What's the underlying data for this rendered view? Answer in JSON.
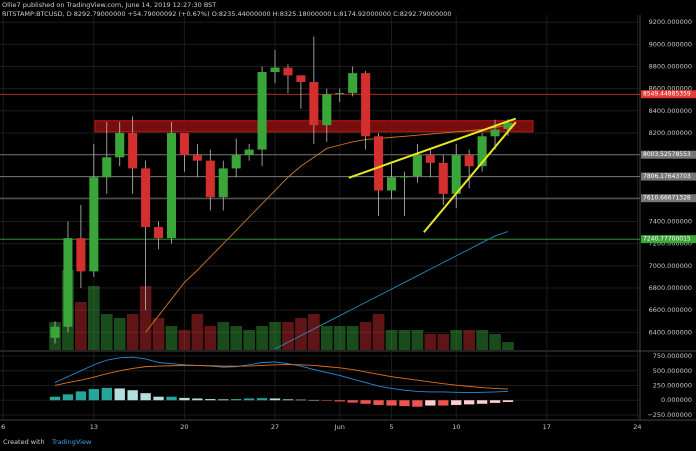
{
  "header": {
    "publisher": "Ollie7 published on TradingView.com, June 14, 2019 12:27:30 BST",
    "symbol_line": "BITSTAMP:BTCUSD, D 8292.79000000 +54.79000092 (+0.67%) O:8235.44000000 H:8325.18000000 L:8174.92000000 C:8292.79000000"
  },
  "footer": {
    "created": "Created with",
    "brand": "TradingView"
  },
  "chart_data": {
    "type": "candlestick",
    "xlim": [
      -0.25,
      49.2
    ],
    "xticks": [
      {
        "value": 0,
        "label": "6"
      },
      {
        "value": 7,
        "label": "13"
      },
      {
        "value": 14,
        "label": "20"
      },
      {
        "value": 21,
        "label": "27"
      },
      {
        "value": 26,
        "label": "Jun"
      },
      {
        "value": 30,
        "label": "5"
      },
      {
        "value": 35,
        "label": "10"
      },
      {
        "value": 42,
        "label": "17"
      },
      {
        "value": 49,
        "label": "24"
      }
    ],
    "ylim": [
      6240,
      9265
    ],
    "yticks": [
      {
        "value": 6400,
        "label": "6400.000000"
      },
      {
        "value": 6600,
        "label": "6600.000000"
      },
      {
        "value": 6800,
        "label": "6800.000000"
      },
      {
        "value": 7000,
        "label": "7000.000000"
      },
      {
        "value": 7200,
        "label": "7200.000000"
      },
      {
        "value": 7400,
        "label": "7400.000000"
      },
      {
        "value": 7600,
        "label": "7600.000000"
      },
      {
        "value": 7800,
        "label": "7800.000000"
      },
      {
        "value": 8000,
        "label": "8000.000000"
      },
      {
        "value": 8200,
        "label": "8200.000000"
      },
      {
        "value": 8400,
        "label": "8400.000000"
      },
      {
        "value": 8600,
        "label": "8600.000000"
      },
      {
        "value": 8800,
        "label": "8800.000000"
      },
      {
        "value": 9000,
        "label": "9000.000000"
      },
      {
        "value": 9200,
        "label": "9200.000000"
      }
    ],
    "grid": true,
    "up_color": "#3aa63a",
    "down_color": "#d32f2f",
    "x": [
      4,
      5,
      6,
      7,
      8,
      9,
      10,
      11,
      12,
      13,
      14,
      15,
      16,
      17,
      18,
      19,
      20,
      21,
      22,
      23,
      24,
      25,
      26,
      27,
      28,
      29,
      30,
      31,
      32,
      33,
      34,
      35,
      36,
      37,
      38,
      39
    ],
    "open": [
      6350,
      6450,
      7250,
      6950,
      7800,
      7980,
      8200,
      7880,
      7350,
      7250,
      8200,
      8000,
      7950,
      7620,
      7880,
      8000,
      8050,
      8750,
      8790,
      8720,
      8660,
      8270,
      8550,
      8560,
      8740,
      8170,
      7680,
      7800,
      7810,
      8000,
      7930,
      7650,
      8000,
      7900,
      8170,
      8235.44
    ],
    "high": [
      6500,
      7400,
      7550,
      8100,
      8300,
      8300,
      8350,
      7950,
      7400,
      8300,
      8200,
      8100,
      8050,
      7950,
      8150,
      8100,
      8800,
      8950,
      8820,
      8720,
      9070,
      8600,
      8600,
      8800,
      8760,
      8200,
      7920,
      7850,
      8100,
      8050,
      8000,
      8100,
      8050,
      8200,
      8320,
      8325.18
    ],
    "low": [
      6300,
      6400,
      6800,
      6900,
      7650,
      7900,
      7650,
      6600,
      7150,
      7200,
      7850,
      7800,
      7500,
      7500,
      7800,
      7950,
      7900,
      8650,
      8560,
      8420,
      8100,
      8120,
      8480,
      8530,
      8050,
      7450,
      7600,
      7450,
      7750,
      7800,
      7550,
      7520,
      7700,
      7850,
      8050,
      8174.92
    ],
    "close": [
      6450,
      7250,
      6950,
      7800,
      7980,
      8200,
      7880,
      7350,
      7250,
      8200,
      8000,
      7950,
      7620,
      7880,
      8000,
      8050,
      8750,
      8790,
      8720,
      8660,
      8270,
      8550,
      8560,
      8740,
      8170,
      7680,
      7800,
      7810,
      8000,
      7930,
      7650,
      8000,
      7900,
      8170,
      8230,
      8292.79
    ],
    "volume": [
      35,
      100,
      60,
      80,
      45,
      40,
      45,
      80,
      40,
      30,
      25,
      45,
      30,
      35,
      30,
      25,
      30,
      35,
      35,
      40,
      45,
      30,
      30,
      30,
      35,
      45,
      25,
      25,
      25,
      20,
      20,
      25,
      25,
      25,
      20,
      10
    ],
    "series": [
      {
        "color": "#c87a2a",
        "values": [
          null,
          null,
          null,
          null,
          null,
          null,
          null,
          6400,
          6550,
          6700,
          6850,
          6960,
          7080,
          7200,
          7320,
          7440,
          7560,
          7680,
          7800,
          7900,
          7980,
          8060,
          8090,
          8120,
          8140,
          8150,
          8160,
          8170,
          8180,
          8190,
          8200,
          8210,
          8220,
          8230,
          8250,
          8270
        ]
      },
      {
        "color": "#2a8bb0",
        "values": [
          null,
          null,
          null,
          null,
          null,
          null,
          null,
          null,
          null,
          null,
          null,
          null,
          null,
          null,
          null,
          null,
          null,
          6250,
          6310,
          6370,
          6430,
          6490,
          6550,
          6610,
          6670,
          6730,
          6790,
          6850,
          6910,
          6970,
          7030,
          7090,
          7150,
          7210,
          7270,
          7310
        ]
      }
    ],
    "levels": [
      {
        "value": 8549.44885359,
        "color": "#e53935"
      },
      {
        "value": 8003.52578553,
        "color": "#777777"
      },
      {
        "value": 7806.17643703,
        "color": "#777777"
      },
      {
        "value": 7610.66671328,
        "color": "#777777"
      },
      {
        "value": 7240.77700015,
        "color": "#3aa63a"
      }
    ],
    "resistance_zone": [
      8210,
      8310
    ],
    "trendlines": [
      {
        "color": "#e8e822",
        "x": [
          26.7,
          39.6
        ],
        "y": [
          7795,
          8330
        ]
      },
      {
        "color": "#e8e822",
        "x": [
          32.5,
          39.6
        ],
        "y": [
          7303,
          8297
        ]
      }
    ],
    "macd": {
      "ylim": [
        -335,
        818
      ],
      "yticks": [
        {
          "value": -250,
          "label": "−250.000000"
        },
        {
          "value": 0,
          "label": "0.000000"
        },
        {
          "value": 250,
          "label": "250.000000"
        },
        {
          "value": 500,
          "label": "500.000000"
        },
        {
          "value": 750,
          "label": "750.000000"
        }
      ],
      "histogram": [
        60,
        100,
        150,
        190,
        210,
        200,
        170,
        120,
        60,
        60,
        40,
        30,
        20,
        15,
        20,
        30,
        35,
        30,
        15,
        10,
        5,
        -5,
        -20,
        -40,
        -60,
        -80,
        -90,
        -100,
        -110,
        -90,
        -90,
        -80,
        -70,
        -60,
        -45,
        -30
      ],
      "series": [
        {
          "color": "#2a8bd8",
          "values": [
            300,
            400,
            500,
            600,
            680,
            720,
            730,
            700,
            640,
            620,
            600,
            590,
            580,
            560,
            570,
            600,
            640,
            650,
            620,
            580,
            520,
            470,
            420,
            360,
            300,
            240,
            200,
            170,
            150,
            140,
            140,
            135,
            130,
            135,
            140,
            150
          ]
        },
        {
          "color": "#e07020",
          "values": [
            250,
            300,
            340,
            390,
            450,
            500,
            540,
            570,
            580,
            585,
            590,
            590,
            585,
            580,
            578,
            580,
            590,
            600,
            605,
            600,
            590,
            570,
            550,
            520,
            480,
            440,
            400,
            370,
            340,
            310,
            280,
            255,
            235,
            215,
            200,
            190
          ]
        }
      ]
    }
  }
}
